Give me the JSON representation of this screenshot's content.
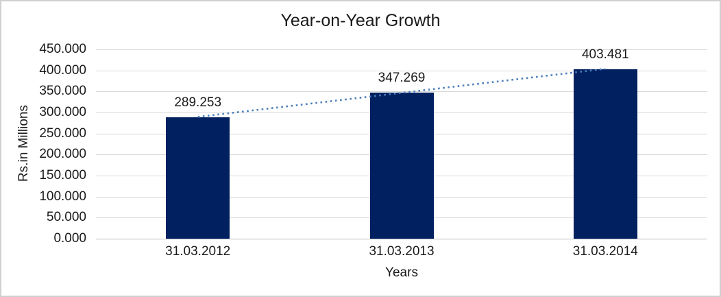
{
  "chart_data": {
    "type": "bar",
    "title": "Year-on-Year Growth",
    "xlabel": "Years",
    "ylabel": "Rs.in Millions",
    "categories": [
      "31.03.2012",
      "31.03.2013",
      "31.03.2014"
    ],
    "values": [
      289.253,
      347.269,
      403.481
    ],
    "value_labels": [
      "289.253",
      "347.269",
      "403.481"
    ],
    "ylim": [
      0,
      450
    ],
    "ytick_step": 50,
    "ytick_labels": [
      "0.000",
      "50.000",
      "100.000",
      "150.000",
      "200.000",
      "250.000",
      "300.000",
      "350.000",
      "400.000",
      "450.000"
    ],
    "grid": "horizontal-gridlines",
    "legend": "none",
    "trendline": {
      "type": "linear",
      "style": "dotted",
      "color": "#4A7EBB"
    },
    "colors": {
      "bar": "#002060",
      "gridline": "#D9D9D9",
      "axis_line": "#BFBFBF",
      "text": "#1a1a1a",
      "frame_border": "#D0D0D0"
    }
  }
}
